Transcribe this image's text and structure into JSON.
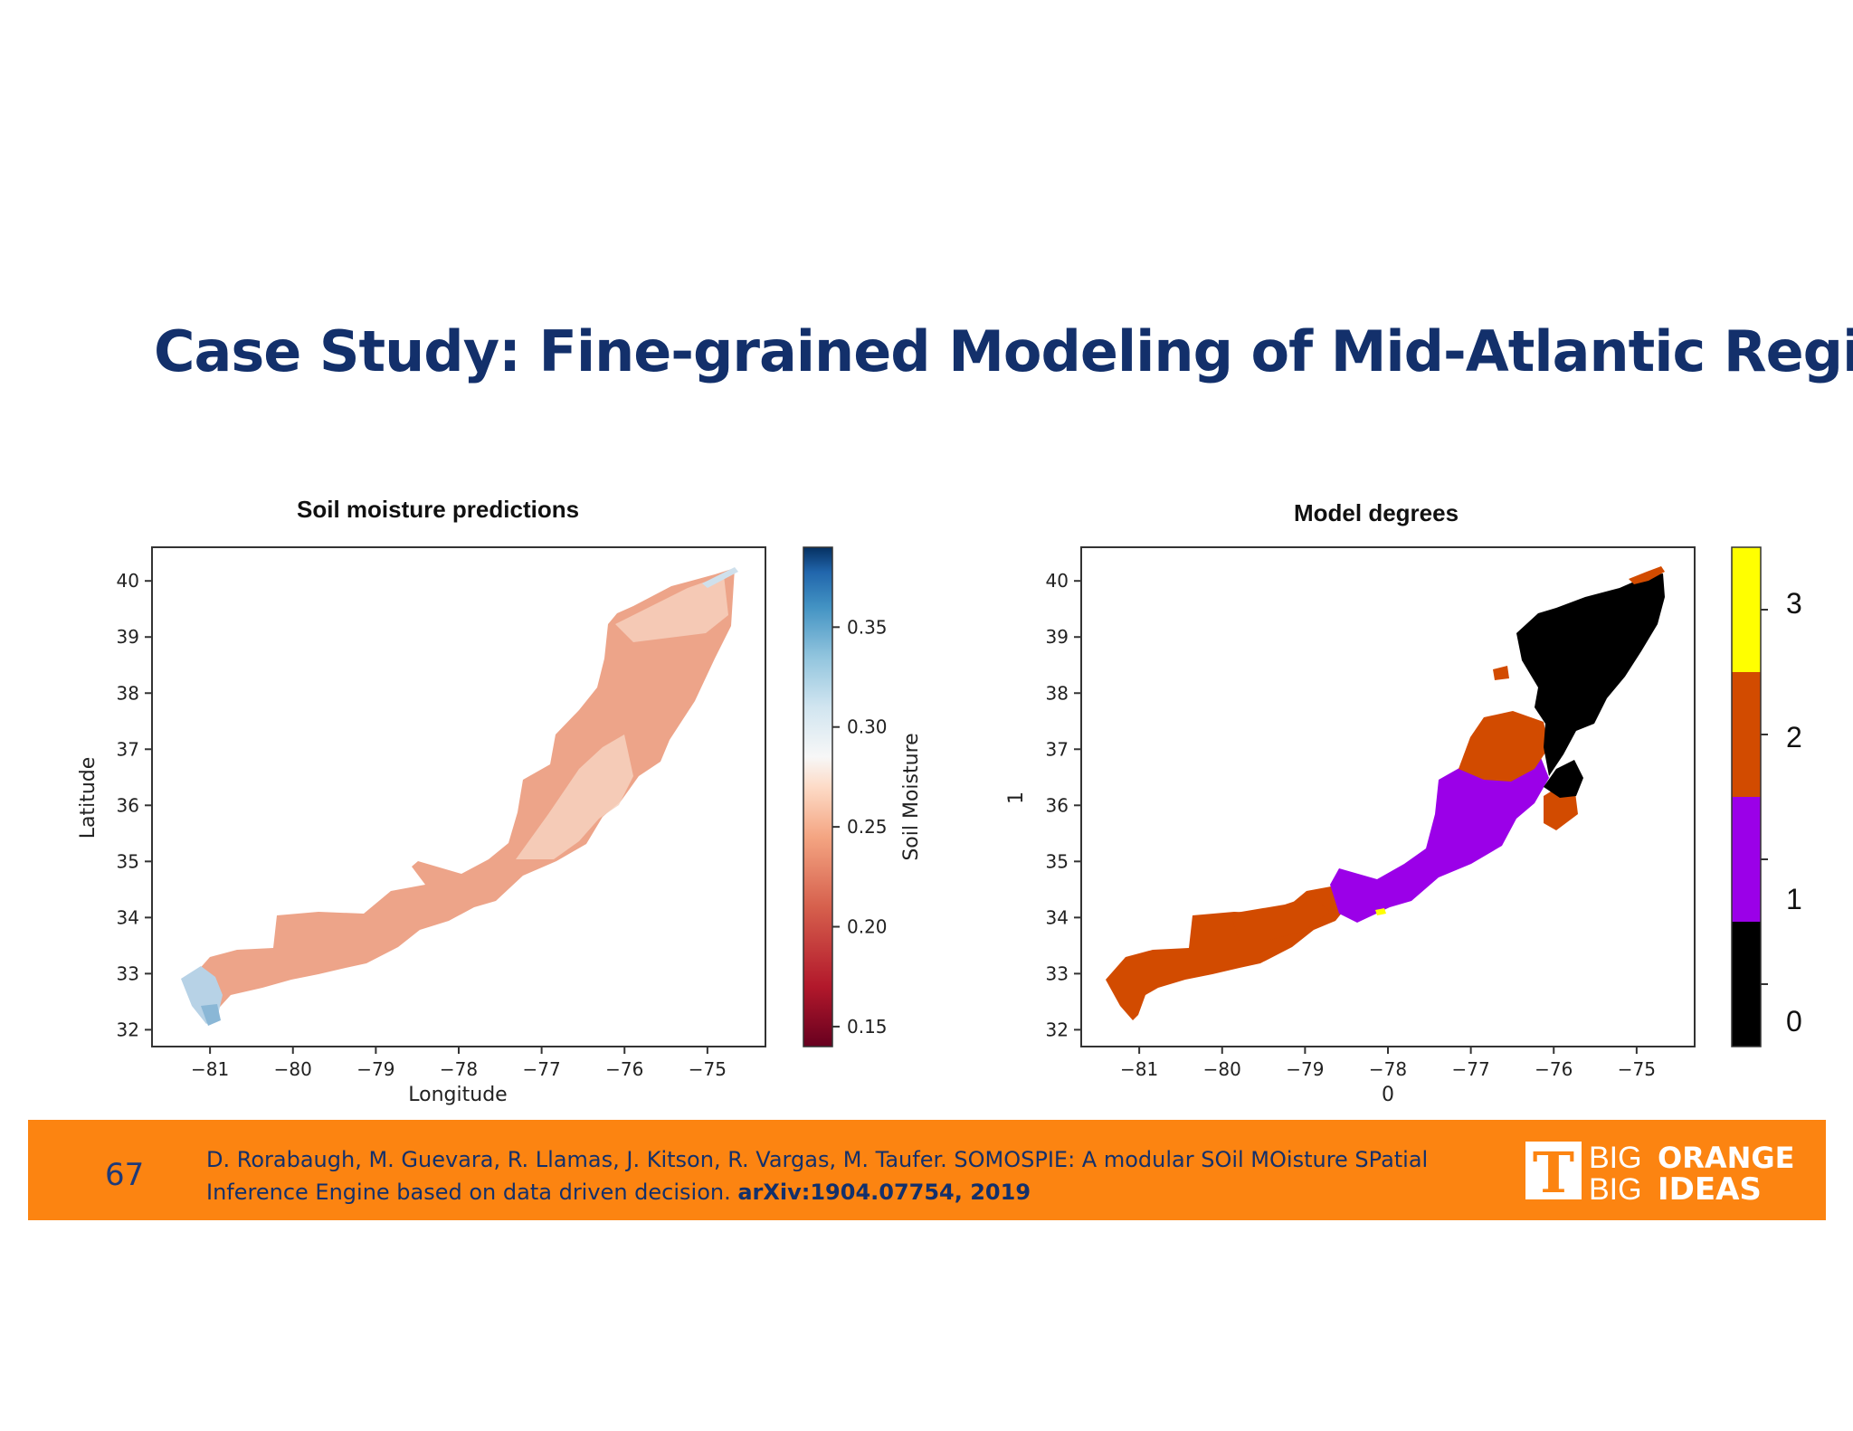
{
  "slide": {
    "title": "Case Study: Fine-grained Modeling of Mid-Atlantic Region",
    "page_number": "67",
    "citation_text": "D. Rorabaugh, M. Guevara, R. Llamas, J. Kitson, R. Vargas, M. Taufer. SOMOSPIE: A modular SOil MOisture SPatial Inference Engine based on data driven decision. ",
    "citation_ref": "arXiv:1904.07754, 2019",
    "logo_line1a": "BIG",
    "logo_line1b": "ORANGE",
    "logo_line2a": "BIG",
    "logo_line2b": "IDEAS",
    "logo_mark": "T"
  },
  "chart_data": [
    {
      "type": "heatmap",
      "title": "Soil moisture predictions",
      "xlabel": "Longitude",
      "ylabel": "Latitude",
      "xticks": [
        "-81",
        "-80",
        "-79",
        "-78",
        "-77",
        "-76",
        "-75"
      ],
      "yticks": [
        "32",
        "33",
        "34",
        "35",
        "36",
        "37",
        "38",
        "39",
        "40"
      ],
      "xlim": [
        -81.7,
        -74.3
      ],
      "ylim": [
        31.7,
        40.6
      ],
      "colorbar": {
        "label": "Soil Moisture",
        "ticks": [
          "0.15",
          "0.20",
          "0.25",
          "0.30",
          "0.35"
        ],
        "range": [
          0.14,
          0.39
        ],
        "colormap": "RdBu"
      },
      "colors": {
        "dominant": "#eda489",
        "light": "#f6d2c0",
        "blue": "#8ab7d6"
      }
    },
    {
      "type": "heatmap",
      "title": "Model degrees",
      "xlabel": "0",
      "ylabel": "1",
      "xticks": [
        "-81",
        "-80",
        "-79",
        "-78",
        "-77",
        "-76",
        "-75"
      ],
      "yticks": [
        "32",
        "33",
        "34",
        "35",
        "36",
        "37",
        "38",
        "39",
        "40"
      ],
      "xlim": [
        -81.7,
        -74.3
      ],
      "ylim": [
        31.7,
        40.6
      ],
      "colorbar": {
        "ticks": [
          "0",
          "1",
          "2",
          "3"
        ],
        "categories": [
          {
            "label": "0",
            "color": "#000000"
          },
          {
            "label": "1",
            "color": "#9b00e8"
          },
          {
            "label": "2",
            "color": "#d24b00"
          },
          {
            "label": "3",
            "color": "#ffff00"
          }
        ]
      }
    }
  ]
}
